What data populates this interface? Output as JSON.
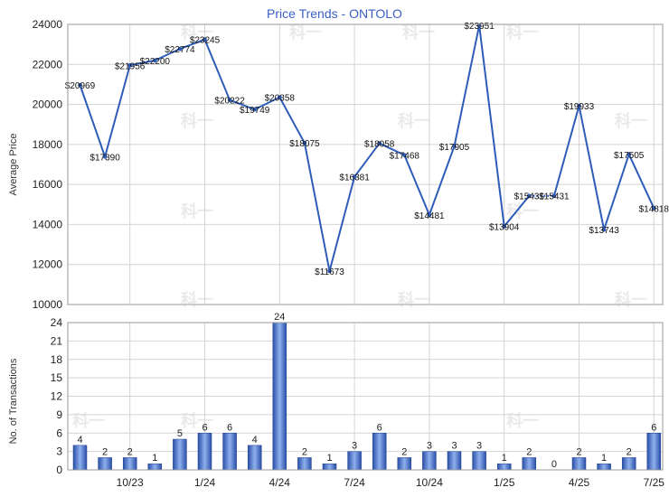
{
  "chart_data": [
    {
      "type": "line",
      "title": "Price Trends - ONTOLO",
      "ylabel": "Average Price",
      "xlabel": "",
      "ylim": [
        10000,
        24000
      ],
      "yticks": [
        "24000",
        "22000",
        "20000",
        "18000",
        "16000",
        "14000",
        "12000",
        "10000"
      ],
      "color": "#2e5cb8",
      "points": [
        {
          "value": 20969,
          "label": "$20969"
        },
        {
          "value": 17390,
          "label": "$17390"
        },
        {
          "value": 21956,
          "label": "$21956"
        },
        {
          "value": 22200,
          "label": "$22200"
        },
        {
          "value": 22774,
          "label": "$22774"
        },
        {
          "value": 23245,
          "label": "$23245"
        },
        {
          "value": 20222,
          "label": "$20222"
        },
        {
          "value": 19749,
          "label": "$19749"
        },
        {
          "value": 20358,
          "label": "$20358"
        },
        {
          "value": 18075,
          "label": "$18075"
        },
        {
          "value": 11673,
          "label": "$11673"
        },
        {
          "value": 16381,
          "label": "$16381"
        },
        {
          "value": 18058,
          "label": "$18058"
        },
        {
          "value": 17468,
          "label": "$17468"
        },
        {
          "value": 14481,
          "label": "$14481"
        },
        {
          "value": 17905,
          "label": "$17905"
        },
        {
          "value": 23951,
          "label": "$23951"
        },
        {
          "value": 13904,
          "label": "$13904"
        },
        {
          "value": 15431,
          "label": "$15431"
        },
        {
          "value": 15431,
          "label": "$15431",
          "dotted_from_prev": true
        },
        {
          "value": 19933,
          "label": "$19933"
        },
        {
          "value": 13743,
          "label": "$13743"
        },
        {
          "value": 17505,
          "label": "$17505"
        },
        {
          "value": 14818,
          "label": "$14818"
        }
      ]
    },
    {
      "type": "bar",
      "ylabel": "No. of Transactions",
      "ylim": [
        0,
        24
      ],
      "yticks": [
        "24",
        "21",
        "18",
        "15",
        "12",
        "9",
        "6",
        "3",
        "0"
      ],
      "values": [
        4,
        2,
        2,
        1,
        5,
        6,
        6,
        4,
        24,
        2,
        1,
        3,
        6,
        2,
        3,
        3,
        3,
        1,
        2,
        0,
        2,
        1,
        2,
        6
      ],
      "xticks": [
        {
          "label": "10/23",
          "index": 2
        },
        {
          "label": "1/24",
          "index": 5
        },
        {
          "label": "4/24",
          "index": 8
        },
        {
          "label": "7/24",
          "index": 11
        },
        {
          "label": "10/24",
          "index": 14
        },
        {
          "label": "1/25",
          "index": 17
        },
        {
          "label": "4/25",
          "index": 20
        },
        {
          "label": "7/25",
          "index": 23
        }
      ]
    }
  ],
  "watermark": "科一",
  "colors": {
    "line": "#2e5cb8",
    "title": "#3b5fc4",
    "grid": "#d4d4d4",
    "bar_dark": "#2a4fa8",
    "bar_light": "#8fb0ee"
  }
}
